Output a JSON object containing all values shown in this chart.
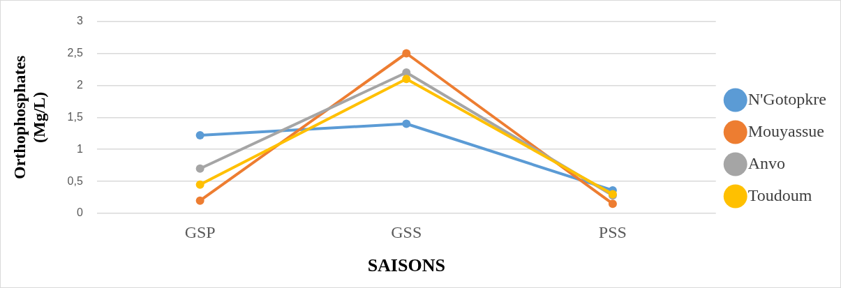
{
  "chart_data": {
    "type": "line",
    "xlabel": "SAISONS",
    "ylabel": "Orthophosphates (Mg/L)",
    "categories": [
      "GSP",
      "GSS",
      "PSS"
    ],
    "series": [
      {
        "name": "N'Gotopkre",
        "color": "#5b9bd5",
        "values": [
          1.22,
          1.4,
          0.36
        ]
      },
      {
        "name": "Mouyassue",
        "color": "#ed7d31",
        "values": [
          0.2,
          2.5,
          0.15
        ]
      },
      {
        "name": "Anvo",
        "color": "#a5a5a5",
        "values": [
          0.7,
          2.2,
          0.28
        ]
      },
      {
        "name": "Toudoum",
        "color": "#ffc000",
        "values": [
          0.45,
          2.1,
          0.3
        ]
      }
    ],
    "ylim": [
      0,
      3
    ],
    "yticks": [
      0,
      {
        "value": 0.5,
        "label": "0,5"
      },
      1,
      {
        "value": 1.5,
        "label": "1,5"
      },
      2,
      {
        "value": 2.5,
        "label": "2,5"
      },
      3
    ],
    "grid": "y",
    "legend": "right",
    "marker": "circle",
    "line_style": "solid"
  }
}
